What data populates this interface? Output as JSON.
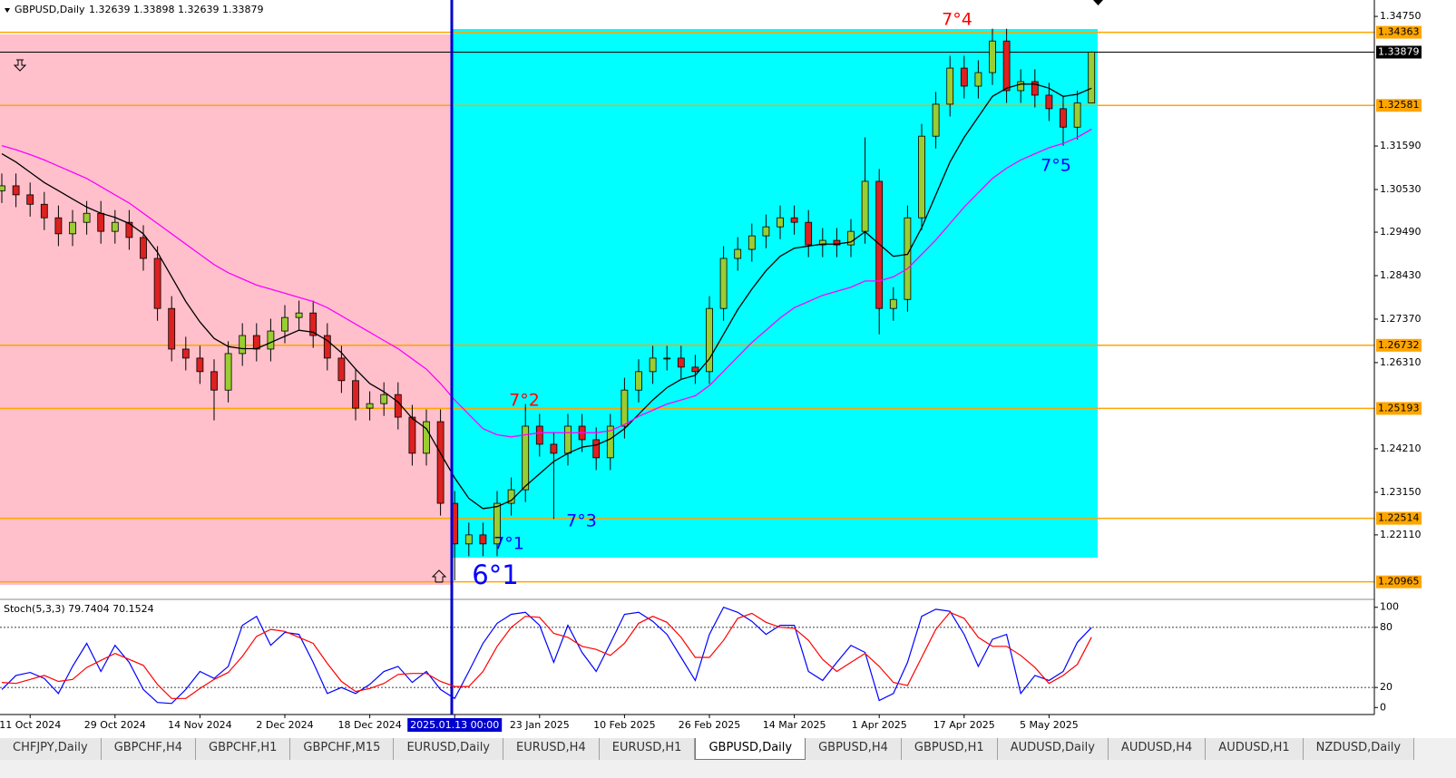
{
  "chart_data": {
    "type": "candlestick",
    "title": "GBPUSD,Daily",
    "ohlc_text": "1.32639 1.33898 1.32639 1.33879",
    "categories": [
      null,
      null,
      "11 Oct 2024",
      null,
      null,
      null,
      null,
      null,
      "29 Oct 2024",
      null,
      null,
      null,
      null,
      null,
      "14 Nov 2024",
      null,
      null,
      null,
      null,
      null,
      "2 Dec 2024",
      null,
      null,
      null,
      null,
      null,
      "18 Dec 2024",
      null,
      null,
      null,
      null,
      null,
      "2025.01.13 00:00",
      null,
      null,
      null,
      null,
      null,
      "23 Jan 2025",
      null,
      null,
      null,
      null,
      null,
      "10 Feb 2025",
      null,
      null,
      null,
      null,
      null,
      "26 Feb 2025",
      null,
      null,
      null,
      null,
      null,
      "14 Mar 2025",
      null,
      null,
      null,
      null,
      null,
      "1 Apr 2025",
      null,
      null,
      null,
      null,
      null,
      "17 Apr 2025",
      null,
      null,
      null,
      null,
      null,
      "5 May 2025",
      null,
      null,
      null
    ],
    "open": [
      1.305,
      1.3062,
      1.304,
      1.3017,
      1.2984,
      1.2945,
      1.2973,
      1.2995,
      1.2951,
      1.2973,
      1.2936,
      1.2885,
      1.2763,
      1.2664,
      1.2642,
      1.2609,
      1.2564,
      1.2653,
      1.2697,
      1.2664,
      1.2708,
      1.2741,
      1.2752,
      1.2697,
      1.2642,
      1.2587,
      1.252,
      1.2531,
      1.2553,
      1.2498,
      1.241,
      1.2487,
      1.2288,
      1.2189,
      1.2211,
      1.2189,
      1.2288,
      1.2321,
      1.2476,
      1.2432,
      1.241,
      1.2476,
      1.2443,
      1.2399,
      1.2476,
      1.2564,
      1.2609,
      1.2642,
      1.2642,
      1.262,
      1.2609,
      1.2763,
      1.2885,
      1.2907,
      1.294,
      1.2962,
      1.2984,
      1.2973,
      1.2918,
      1.2929,
      1.2918,
      1.2951,
      1.3073,
      1.2763,
      1.2785,
      1.2984,
      1.3183,
      1.3261,
      1.3349,
      1.3305,
      1.3338,
      1.3415,
      1.3294,
      1.3316,
      1.3283,
      1.325,
      1.3205,
      1.3264
    ],
    "high": [
      1.3092,
      1.3092,
      1.307,
      1.3047,
      1.3014,
      1.3003,
      1.3025,
      1.3025,
      1.3003,
      1.3003,
      1.2966,
      1.2915,
      1.2793,
      1.2694,
      1.2672,
      1.2639,
      1.2683,
      1.2727,
      1.2727,
      1.2738,
      1.2771,
      1.2782,
      1.2782,
      1.2727,
      1.2672,
      1.2617,
      1.2561,
      1.2583,
      1.2583,
      1.2528,
      1.2517,
      1.2517,
      1.2318,
      1.2241,
      1.2241,
      1.2318,
      1.2351,
      1.253,
      1.2506,
      1.2462,
      1.2506,
      1.2506,
      1.2473,
      1.2506,
      1.2594,
      1.2639,
      1.2672,
      1.2672,
      1.2672,
      1.265,
      1.2793,
      1.2915,
      1.2937,
      1.297,
      1.2992,
      1.3014,
      1.3014,
      1.3003,
      1.2959,
      1.2959,
      1.2981,
      1.318,
      1.3103,
      1.2815,
      1.3014,
      1.3213,
      1.3291,
      1.3379,
      1.3379,
      1.3368,
      1.3445,
      1.3445,
      1.3346,
      1.3346,
      1.3313,
      1.328,
      1.3294,
      1.339
    ],
    "low": [
      1.302,
      1.301,
      1.2987,
      1.2954,
      1.2915,
      1.2915,
      1.2943,
      1.2921,
      1.2921,
      1.2906,
      1.2855,
      1.2733,
      1.2634,
      1.2612,
      1.2579,
      1.249,
      1.2534,
      1.2623,
      1.2634,
      1.2634,
      1.2678,
      1.2711,
      1.2667,
      1.2612,
      1.2557,
      1.249,
      1.249,
      1.2501,
      1.2468,
      1.238,
      1.238,
      1.2258,
      1.21,
      1.2159,
      1.2159,
      1.2159,
      1.2258,
      1.2291,
      1.2402,
      1.225,
      1.238,
      1.2413,
      1.2369,
      1.2369,
      1.2446,
      1.2534,
      1.2579,
      1.2612,
      1.259,
      1.2579,
      1.2579,
      1.2733,
      1.2855,
      1.2877,
      1.291,
      1.2932,
      1.2943,
      1.2888,
      1.2888,
      1.2888,
      1.2888,
      1.2921,
      1.27,
      1.2733,
      1.2755,
      1.2954,
      1.3153,
      1.3231,
      1.3275,
      1.3275,
      1.3308,
      1.3264,
      1.3264,
      1.3253,
      1.322,
      1.316,
      1.3175,
      1.3264
    ],
    "close": [
      1.3062,
      1.304,
      1.3017,
      1.2984,
      1.2945,
      1.2973,
      1.2995,
      1.2951,
      1.2973,
      1.2936,
      1.2885,
      1.2763,
      1.2664,
      1.2642,
      1.2609,
      1.2564,
      1.2653,
      1.2697,
      1.2664,
      1.2708,
      1.2741,
      1.2752,
      1.2697,
      1.2642,
      1.2587,
      1.252,
      1.2531,
      1.2553,
      1.2498,
      1.241,
      1.2487,
      1.2288,
      1.2189,
      1.2211,
      1.2189,
      1.2288,
      1.2321,
      1.2476,
      1.2432,
      1.241,
      1.2476,
      1.2443,
      1.2399,
      1.2476,
      1.2564,
      1.2609,
      1.2642,
      1.2642,
      1.262,
      1.2609,
      1.2763,
      1.2885,
      1.2907,
      1.294,
      1.2962,
      1.2984,
      1.2973,
      1.2918,
      1.2929,
      1.2918,
      1.2951,
      1.3073,
      1.2763,
      1.2785,
      1.2984,
      1.3183,
      1.3261,
      1.3349,
      1.3305,
      1.3338,
      1.3415,
      1.3294,
      1.3316,
      1.3283,
      1.325,
      1.3205,
      1.3264,
      1.3388
    ],
    "up_color": "#9acd32",
    "down_color": "#dd2020",
    "ma": [
      {
        "color": "#000000",
        "values": [
          1.314,
          1.312,
          1.3095,
          1.307,
          1.305,
          1.303,
          1.301,
          1.2995,
          1.2985,
          1.297,
          1.2945,
          1.29,
          1.284,
          1.278,
          1.273,
          1.269,
          1.267,
          1.2665,
          1.2665,
          1.268,
          1.2695,
          1.271,
          1.2705,
          1.2685,
          1.2655,
          1.2615,
          1.258,
          1.256,
          1.2535,
          1.2495,
          1.247,
          1.241,
          1.235,
          1.23,
          1.2275,
          1.228,
          1.2295,
          1.233,
          1.236,
          1.239,
          1.241,
          1.2425,
          1.243,
          1.2445,
          1.247,
          1.2505,
          1.254,
          1.257,
          1.259,
          1.26,
          1.264,
          1.27,
          1.276,
          1.281,
          1.2855,
          1.289,
          1.291,
          1.2915,
          1.292,
          1.292,
          1.2925,
          1.295,
          1.292,
          1.289,
          1.2895,
          1.296,
          1.304,
          1.312,
          1.318,
          1.323,
          1.328,
          1.33,
          1.331,
          1.331,
          1.33,
          1.328,
          1.3285,
          1.33
        ]
      },
      {
        "color": "#ff00ff",
        "values": [
          1.316,
          1.315,
          1.3138,
          1.3125,
          1.311,
          1.3095,
          1.308,
          1.306,
          1.304,
          1.302,
          1.2995,
          1.297,
          1.2945,
          1.292,
          1.2895,
          1.287,
          1.285,
          1.2835,
          1.282,
          1.281,
          1.28,
          1.279,
          1.278,
          1.2765,
          1.2745,
          1.2725,
          1.2705,
          1.2685,
          1.2665,
          1.264,
          1.2615,
          1.258,
          1.254,
          1.2505,
          1.247,
          1.2455,
          1.245,
          1.2455,
          1.246,
          1.246,
          1.246,
          1.246,
          1.246,
          1.2465,
          1.248,
          1.25,
          1.2515,
          1.253,
          1.254,
          1.255,
          1.2575,
          1.261,
          1.2645,
          1.268,
          1.271,
          1.274,
          1.2765,
          1.278,
          1.2795,
          1.2805,
          1.2815,
          1.283,
          1.283,
          1.284,
          1.286,
          1.2895,
          1.293,
          1.297,
          1.301,
          1.3045,
          1.308,
          1.3105,
          1.3125,
          1.314,
          1.3155,
          1.3165,
          1.318,
          1.32
        ]
      }
    ],
    "ylim": [
      1.2056,
      1.3515
    ],
    "yticks": [
      {
        "value": 1.3475,
        "label": "1.34750"
      },
      {
        "value": 1.3159,
        "label": "1.31590"
      },
      {
        "value": 1.3053,
        "label": "1.30530"
      },
      {
        "value": 1.2949,
        "label": "1.29490"
      },
      {
        "value": 1.2843,
        "label": "1.28430"
      },
      {
        "value": 1.2737,
        "label": "1.27370"
      },
      {
        "value": 1.2631,
        "label": "1.26310"
      },
      {
        "value": 1.2421,
        "label": "1.24210"
      },
      {
        "value": 1.2315,
        "label": "1.23150"
      },
      {
        "value": 1.2211,
        "label": "1.22110"
      }
    ],
    "levels": [
      1.34363,
      1.32581,
      1.26732,
      1.25193,
      1.22514,
      1.20965
    ],
    "level_color": "#ffa500",
    "last_price": 1.33879,
    "annotations": [
      "7°4",
      "7°2",
      "7°3",
      "7°1",
      "6°1",
      "7°5"
    ],
    "stoch": {
      "label": "Stoch(5,3,3) 79.7404 70.1524",
      "ylim": [
        -7,
        107
      ],
      "yticks": [
        0,
        20,
        80,
        100
      ],
      "series": [
        {
          "color": "#0000ff",
          "values": [
            18,
            32,
            35,
            29,
            14,
            41,
            64,
            36,
            62,
            45,
            18,
            5,
            4,
            18,
            36,
            29,
            41,
            82,
            91,
            62,
            75,
            73,
            45,
            14,
            20,
            14,
            23,
            36,
            41,
            25,
            36,
            18,
            9,
            36,
            64,
            84,
            93,
            95,
            82,
            45,
            82,
            55,
            36,
            64,
            93,
            95,
            86,
            73,
            50,
            27,
            73,
            100,
            95,
            86,
            73,
            82,
            82,
            36,
            27,
            45,
            62,
            55,
            7,
            14,
            45,
            91,
            98,
            96,
            73,
            41,
            68,
            73,
            14,
            32,
            27,
            36,
            65,
            79.7404
          ]
        },
        {
          "color": "#ff0000",
          "values": [
            25,
            24,
            28,
            32,
            26,
            28,
            40,
            47,
            54,
            48,
            42,
            23,
            9,
            9,
            19,
            28,
            35,
            51,
            71,
            78,
            76,
            70,
            64,
            44,
            26,
            16,
            19,
            24,
            33,
            34,
            34,
            26,
            21,
            21,
            36,
            61,
            80,
            91,
            90,
            74,
            70,
            61,
            58,
            52,
            64,
            84,
            91,
            85,
            70,
            50,
            50,
            67,
            89,
            94,
            85,
            80,
            79,
            67,
            48,
            36,
            45,
            54,
            41,
            25,
            22,
            50,
            78,
            95,
            89,
            70,
            61,
            61,
            52,
            40,
            24,
            32,
            43,
            70.1524
          ]
        }
      ]
    },
    "tabs": [
      "CHFJPY,Daily",
      "GBPCHF,H4",
      "GBPCHF,H1",
      "GBPCHF,M15",
      "EURUSD,Daily",
      "EURUSD,H4",
      "EURUSD,H1",
      "GBPUSD,Daily",
      "GBPUSD,H4",
      "GBPUSD,H1",
      "AUDUSD,Daily",
      "AUDUSD,H4",
      "AUDUSD,H1",
      "NZDUSD,Daily"
    ]
  }
}
